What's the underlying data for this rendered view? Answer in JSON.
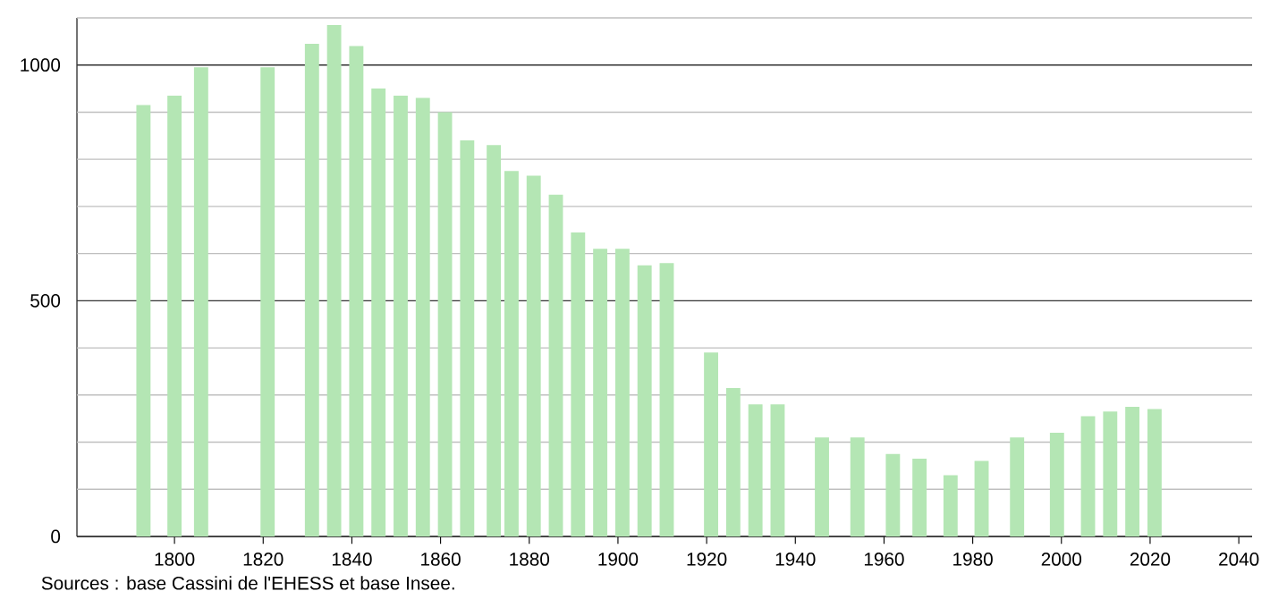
{
  "chart_data": {
    "type": "bar",
    "color": "#b4e6b4",
    "x": [
      1793,
      1800,
      1806,
      1821,
      1831,
      1836,
      1841,
      1846,
      1851,
      1856,
      1861,
      1866,
      1872,
      1876,
      1881,
      1886,
      1891,
      1896,
      1901,
      1906,
      1911,
      1921,
      1926,
      1931,
      1936,
      1946,
      1954,
      1962,
      1968,
      1975,
      1982,
      1990,
      1999,
      2006,
      2011,
      2016,
      2021
    ],
    "values": [
      915,
      935,
      995,
      995,
      1045,
      1085,
      1040,
      950,
      935,
      930,
      900,
      840,
      830,
      775,
      765,
      725,
      645,
      610,
      610,
      575,
      580,
      390,
      315,
      280,
      280,
      210,
      210,
      175,
      165,
      130,
      160,
      210,
      220,
      255,
      265,
      275,
      270
    ],
    "xlim": [
      1778,
      2043
    ],
    "xticks": [
      1800,
      1820,
      1840,
      1860,
      1880,
      1900,
      1920,
      1940,
      1960,
      1980,
      2000,
      2020,
      2040
    ],
    "ylim": [
      0,
      1100
    ],
    "yticks": [
      0,
      {
        "value": 100,
        "label": null
      },
      {
        "value": 200,
        "label": null
      },
      {
        "value": 300,
        "label": null
      },
      {
        "value": 400,
        "label": null
      },
      500,
      {
        "value": 600,
        "label": null
      },
      {
        "value": 700,
        "label": null
      },
      {
        "value": 800,
        "label": null
      },
      {
        "value": 900,
        "label": null
      },
      1000,
      {
        "value": 1100,
        "label": null
      }
    ],
    "grid": "y",
    "annotations": [
      "Sources : base Cassini de l'EHESS et base Insee."
    ]
  }
}
